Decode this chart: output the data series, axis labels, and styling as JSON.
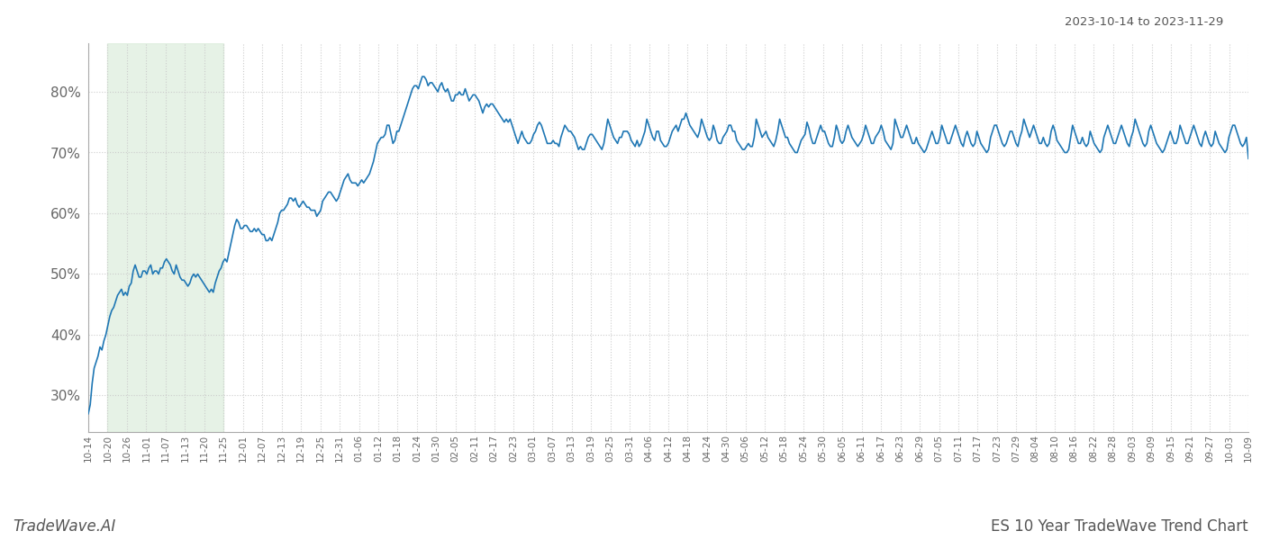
{
  "title_top_right": "2023-10-14 to 2023-11-29",
  "title_bottom_left": "TradeWave.AI",
  "title_bottom_right": "ES 10 Year TradeWave Trend Chart",
  "line_color": "#1f77b4",
  "line_width": 1.2,
  "shading_color": "#d6ead6",
  "shading_alpha": 0.6,
  "background_color": "#ffffff",
  "grid_color": "#cccccc",
  "grid_linestyle": ":",
  "ylim": [
    24,
    88
  ],
  "yticks": [
    30,
    40,
    50,
    60,
    70,
    80
  ],
  "x_labels": [
    "10-14",
    "10-20",
    "10-26",
    "11-01",
    "11-07",
    "11-13",
    "11-20",
    "11-25",
    "12-01",
    "12-07",
    "12-13",
    "12-19",
    "12-25",
    "12-31",
    "01-06",
    "01-12",
    "01-18",
    "01-24",
    "01-30",
    "02-05",
    "02-11",
    "02-17",
    "02-23",
    "03-01",
    "03-07",
    "03-13",
    "03-19",
    "03-25",
    "03-31",
    "04-06",
    "04-12",
    "04-18",
    "04-24",
    "04-30",
    "05-06",
    "05-12",
    "05-18",
    "05-24",
    "05-30",
    "06-05",
    "06-11",
    "06-17",
    "06-23",
    "06-29",
    "07-05",
    "07-11",
    "07-17",
    "07-23",
    "07-29",
    "08-04",
    "08-10",
    "08-16",
    "08-22",
    "08-28",
    "09-03",
    "09-09",
    "09-15",
    "09-21",
    "09-27",
    "10-03",
    "10-09"
  ],
  "shading_start_label": "10-20",
  "shading_end_label": "11-25",
  "y_values": [
    27.0,
    28.5,
    32.0,
    34.5,
    35.5,
    36.5,
    38.0,
    37.5,
    39.0,
    40.0,
    41.5,
    43.0,
    44.0,
    44.5,
    45.5,
    46.5,
    47.0,
    47.5,
    46.5,
    47.0,
    46.5,
    48.0,
    48.5,
    50.5,
    51.5,
    50.5,
    49.5,
    49.5,
    50.5,
    50.5,
    50.0,
    51.0,
    51.5,
    50.0,
    50.5,
    50.5,
    50.0,
    51.0,
    51.0,
    52.0,
    52.5,
    52.0,
    51.5,
    50.5,
    50.0,
    51.5,
    50.5,
    49.5,
    49.0,
    49.0,
    48.5,
    48.0,
    48.5,
    49.5,
    50.0,
    49.5,
    50.0,
    49.5,
    49.0,
    48.5,
    48.0,
    47.5,
    47.0,
    47.5,
    47.0,
    48.5,
    49.5,
    50.5,
    51.0,
    52.0,
    52.5,
    52.0,
    53.5,
    55.0,
    56.5,
    58.0,
    59.0,
    58.5,
    57.5,
    57.5,
    58.0,
    58.0,
    57.5,
    57.0,
    57.0,
    57.5,
    57.0,
    57.5,
    57.0,
    56.5,
    56.5,
    55.5,
    55.5,
    56.0,
    55.5,
    56.5,
    57.5,
    58.5,
    60.0,
    60.5,
    60.5,
    61.0,
    61.5,
    62.5,
    62.5,
    62.0,
    62.5,
    61.5,
    61.0,
    61.5,
    62.0,
    61.5,
    61.0,
    61.0,
    60.5,
    60.5,
    60.5,
    59.5,
    60.0,
    60.5,
    62.0,
    62.5,
    63.0,
    63.5,
    63.5,
    63.0,
    62.5,
    62.0,
    62.5,
    63.5,
    64.5,
    65.5,
    66.0,
    66.5,
    65.5,
    65.0,
    65.0,
    65.0,
    64.5,
    65.0,
    65.5,
    65.0,
    65.5,
    66.0,
    66.5,
    67.5,
    68.5,
    70.0,
    71.5,
    72.0,
    72.5,
    72.5,
    73.0,
    74.5,
    74.5,
    73.0,
    71.5,
    72.0,
    73.5,
    73.5,
    74.5,
    75.5,
    76.5,
    77.5,
    78.5,
    79.5,
    80.5,
    81.0,
    81.0,
    80.5,
    81.5,
    82.5,
    82.5,
    82.0,
    81.0,
    81.5,
    81.5,
    81.0,
    80.5,
    80.0,
    81.0,
    81.5,
    80.5,
    80.0,
    80.5,
    79.5,
    78.5,
    78.5,
    79.5,
    79.5,
    80.0,
    79.5,
    79.5,
    80.5,
    79.5,
    78.5,
    79.0,
    79.5,
    79.5,
    79.0,
    78.5,
    77.5,
    76.5,
    77.5,
    78.0,
    77.5,
    78.0,
    78.0,
    77.5,
    77.0,
    76.5,
    76.0,
    75.5,
    75.0,
    75.5,
    75.0,
    75.5,
    74.5,
    73.5,
    72.5,
    71.5,
    72.5,
    73.5,
    72.5,
    72.0,
    71.5,
    71.5,
    72.0,
    73.0,
    73.5,
    74.5,
    75.0,
    74.5,
    73.5,
    72.5,
    71.5,
    71.5,
    71.5,
    72.0,
    71.5,
    71.5,
    71.0,
    72.5,
    73.5,
    74.5,
    74.0,
    73.5,
    73.5,
    73.0,
    72.5,
    71.5,
    70.5,
    71.0,
    70.5,
    70.5,
    71.5,
    72.5,
    73.0,
    73.0,
    72.5,
    72.0,
    71.5,
    71.0,
    70.5,
    71.5,
    73.5,
    75.5,
    74.5,
    73.5,
    72.5,
    72.0,
    71.5,
    72.5,
    72.5,
    73.5,
    73.5,
    73.5,
    73.0,
    72.0,
    71.5,
    71.0,
    72.0,
    71.0,
    71.5,
    72.5,
    73.5,
    75.5,
    74.5,
    73.5,
    72.5,
    72.0,
    73.5,
    73.5,
    72.0,
    71.5,
    71.0,
    71.0,
    71.5,
    72.5,
    73.5,
    74.0,
    74.5,
    73.5,
    74.5,
    75.5,
    75.5,
    76.5,
    75.5,
    74.5,
    74.0,
    73.5,
    73.0,
    72.5,
    73.5,
    75.5,
    74.5,
    73.5,
    72.5,
    72.0,
    72.5,
    74.5,
    73.5,
    72.0,
    71.5,
    71.5,
    72.5,
    73.0,
    73.5,
    74.5,
    74.5,
    73.5,
    73.5,
    72.0,
    71.5,
    71.0,
    70.5,
    70.5,
    71.0,
    71.5,
    71.0,
    71.0,
    72.5,
    75.5,
    74.5,
    73.5,
    72.5,
    73.0,
    73.5,
    72.5,
    72.0,
    71.5,
    71.0,
    72.0,
    73.5,
    75.5,
    74.5,
    73.5,
    72.5,
    72.5,
    71.5,
    71.0,
    70.5,
    70.0,
    70.0,
    71.0,
    72.0,
    72.5,
    73.0,
    75.0,
    74.0,
    72.5,
    71.5,
    71.5,
    72.5,
    73.5,
    74.5,
    73.5,
    73.5,
    72.5,
    71.5,
    71.0,
    71.0,
    72.5,
    74.5,
    73.5,
    72.0,
    71.5,
    72.0,
    73.5,
    74.5,
    73.5,
    72.5,
    72.0,
    71.5,
    71.0,
    71.5,
    72.0,
    73.0,
    74.5,
    73.5,
    72.5,
    71.5,
    71.5,
    72.5,
    73.0,
    73.5,
    74.5,
    73.5,
    72.0,
    71.5,
    71.0,
    70.5,
    71.5,
    75.5,
    74.5,
    73.5,
    72.5,
    72.5,
    73.5,
    74.5,
    73.5,
    72.5,
    71.5,
    71.5,
    72.5,
    71.5,
    71.0,
    70.5,
    70.0,
    70.5,
    71.5,
    72.5,
    73.5,
    72.5,
    71.5,
    71.5,
    72.5,
    74.5,
    73.5,
    72.5,
    71.5,
    71.5,
    72.5,
    73.5,
    74.5,
    73.5,
    72.5,
    71.5,
    71.0,
    72.5,
    73.5,
    72.5,
    71.5,
    71.0,
    71.5,
    73.5,
    72.5,
    71.5,
    71.0,
    70.5,
    70.0,
    70.5,
    72.5,
    73.5,
    74.5,
    74.5,
    73.5,
    72.5,
    71.5,
    71.0,
    71.5,
    72.5,
    73.5,
    73.5,
    72.5,
    71.5,
    71.0,
    72.5,
    73.5,
    75.5,
    74.5,
    73.5,
    72.5,
    73.5,
    74.5,
    73.5,
    72.5,
    71.5,
    71.5,
    72.5,
    71.5,
    71.0,
    71.5,
    73.5,
    74.5,
    73.5,
    72.0,
    71.5,
    71.0,
    70.5,
    70.0,
    70.0,
    70.5,
    72.5,
    74.5,
    73.5,
    72.5,
    71.5,
    71.5,
    72.5,
    71.5,
    71.0,
    71.5,
    73.5,
    72.5,
    71.5,
    71.0,
    70.5,
    70.0,
    70.5,
    72.5,
    73.5,
    74.5,
    73.5,
    72.5,
    71.5,
    71.5,
    72.5,
    73.5,
    74.5,
    73.5,
    72.5,
    71.5,
    71.0,
    72.5,
    73.5,
    75.5,
    74.5,
    73.5,
    72.5,
    71.5,
    71.0,
    71.5,
    73.5,
    74.5,
    73.5,
    72.5,
    71.5,
    71.0,
    70.5,
    70.0,
    70.5,
    71.5,
    72.5,
    73.5,
    72.5,
    71.5,
    71.5,
    72.5,
    74.5,
    73.5,
    72.5,
    71.5,
    71.5,
    72.5,
    73.5,
    74.5,
    73.5,
    72.5,
    71.5,
    71.0,
    72.5,
    73.5,
    72.5,
    71.5,
    71.0,
    71.5,
    73.5,
    72.5,
    71.5,
    71.0,
    70.5,
    70.0,
    70.5,
    72.5,
    73.5,
    74.5,
    74.5,
    73.5,
    72.5,
    71.5,
    71.0,
    71.5,
    72.5,
    69.0
  ]
}
